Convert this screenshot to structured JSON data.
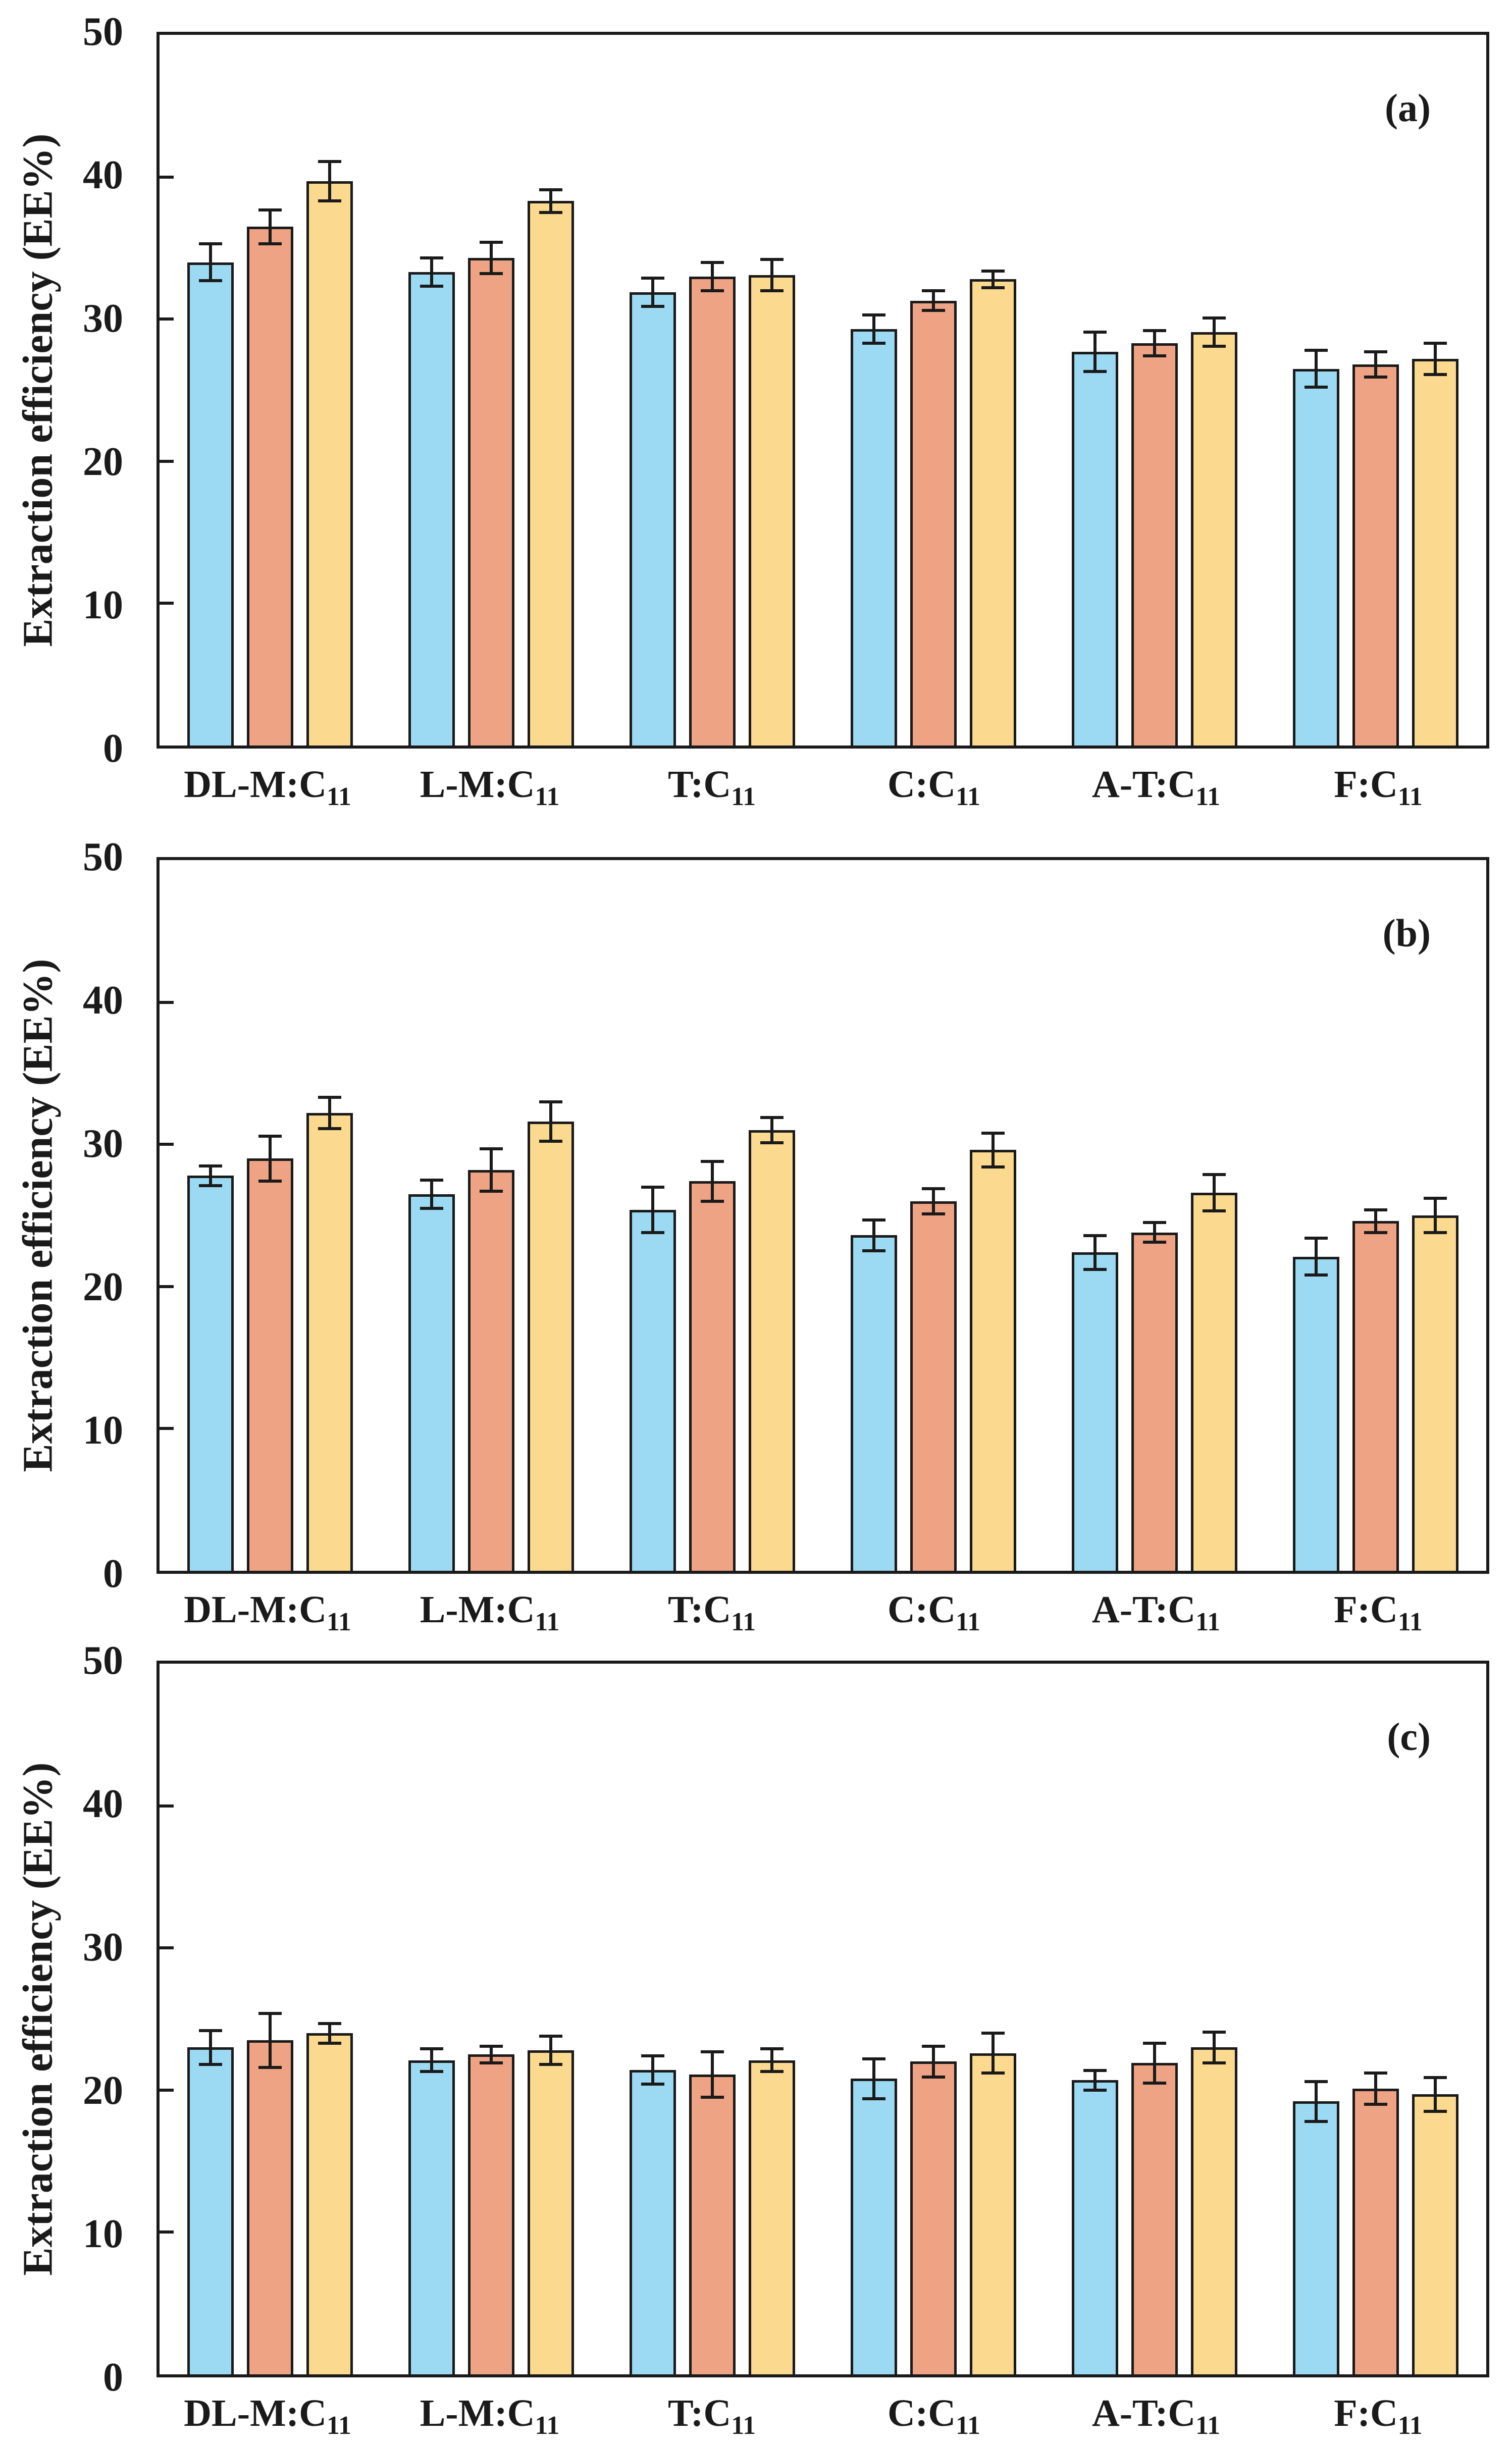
{
  "figure": {
    "ylabel": "Extraction efficiency (EE%)",
    "y_ticks": [
      0,
      10,
      20,
      30,
      40,
      50
    ],
    "ymax": 50,
    "categories": [
      {
        "base": "DL-M:C",
        "sub": "11"
      },
      {
        "base": "L-M:C",
        "sub": "11"
      },
      {
        "base": "T:C",
        "sub": "11"
      },
      {
        "base": "C:C",
        "sub": "11"
      },
      {
        "base": "A-T:C",
        "sub": "11"
      },
      {
        "base": "F:C",
        "sub": "11"
      }
    ],
    "colors": {
      "series_blue": "#9BDAF2",
      "series_orange": "#EDA384",
      "series_yellow": "#FBD98E",
      "line": "#1a1a1a"
    }
  },
  "chart_data": [
    {
      "type": "bar",
      "panel_label": "(a)",
      "title": "",
      "xlabel": "",
      "ylabel": "Extraction efficiency (EE%)",
      "ylim": [
        0,
        50
      ],
      "grid": false,
      "legend": "none",
      "error_bars": true,
      "categories": [
        "DL-M:C11",
        "L-M:C11",
        "T:C11",
        "C:C11",
        "A-T:C11",
        "F:C11"
      ],
      "series": [
        {
          "name": "blue",
          "color": "#9BDAF2",
          "values": [
            34.0,
            33.3,
            31.9,
            29.3,
            27.7,
            26.5
          ],
          "errors": [
            1.4,
            1.1,
            1.1,
            1.1,
            1.5,
            1.4
          ]
        },
        {
          "name": "orange",
          "color": "#EDA384",
          "values": [
            36.5,
            34.3,
            33.0,
            31.3,
            28.3,
            26.8
          ],
          "errors": [
            1.3,
            1.2,
            1.1,
            0.8,
            1.0,
            1.0
          ]
        },
        {
          "name": "yellow",
          "color": "#FBD98E",
          "values": [
            39.7,
            38.3,
            33.1,
            32.8,
            29.1,
            27.2
          ],
          "errors": [
            1.5,
            0.9,
            1.2,
            0.7,
            1.1,
            1.2
          ]
        }
      ]
    },
    {
      "type": "bar",
      "panel_label": "(b)",
      "title": "",
      "xlabel": "",
      "ylabel": "Extraction efficiency (EE%)",
      "ylim": [
        0,
        50
      ],
      "grid": false,
      "legend": "none",
      "error_bars": true,
      "categories": [
        "DL-M:C11",
        "L-M:C11",
        "T:C11",
        "C:C11",
        "A-T:C11",
        "F:C11"
      ],
      "series": [
        {
          "name": "blue",
          "color": "#9BDAF2",
          "values": [
            27.8,
            26.5,
            25.4,
            23.6,
            22.4,
            22.1
          ],
          "errors": [
            0.8,
            1.1,
            1.7,
            1.2,
            1.3,
            1.4
          ]
        },
        {
          "name": "orange",
          "color": "#EDA384",
          "values": [
            29.0,
            28.2,
            27.4,
            26.0,
            23.8,
            24.6
          ],
          "errors": [
            1.7,
            1.6,
            1.5,
            1.0,
            0.8,
            0.9
          ]
        },
        {
          "name": "yellow",
          "color": "#FBD98E",
          "values": [
            32.2,
            31.6,
            31.0,
            29.6,
            26.6,
            25.0
          ],
          "errors": [
            1.2,
            1.5,
            1.0,
            1.3,
            1.4,
            1.3
          ]
        }
      ]
    },
    {
      "type": "bar",
      "panel_label": "(c)",
      "title": "",
      "xlabel": "",
      "ylabel": "Extraction efficiency (EE%)",
      "ylim": [
        0,
        50
      ],
      "grid": false,
      "legend": "none",
      "error_bars": true,
      "categories": [
        "DL-M:C11",
        "L-M:C11",
        "T:C11",
        "C:C11",
        "A-T:C11",
        "F:C11"
      ],
      "series": [
        {
          "name": "blue",
          "color": "#9BDAF2",
          "values": [
            23.0,
            22.1,
            21.4,
            20.8,
            20.7,
            19.2
          ],
          "errors": [
            1.3,
            0.9,
            1.1,
            1.5,
            0.8,
            1.5
          ]
        },
        {
          "name": "orange",
          "color": "#EDA384",
          "values": [
            23.5,
            22.5,
            21.1,
            22.0,
            21.9,
            20.1
          ],
          "errors": [
            2.0,
            0.7,
            1.7,
            1.2,
            1.5,
            1.2
          ]
        },
        {
          "name": "yellow",
          "color": "#FBD98E",
          "values": [
            24.0,
            22.8,
            22.1,
            22.6,
            23.0,
            19.7
          ],
          "errors": [
            0.8,
            1.1,
            0.9,
            1.5,
            1.2,
            1.3
          ]
        }
      ]
    }
  ]
}
